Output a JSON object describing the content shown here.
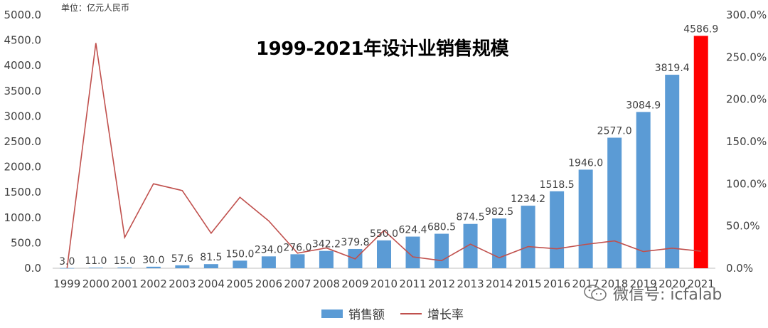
{
  "chart_data": {
    "type": "bar",
    "title": "1999-2021年设计业销售规模",
    "unit_label": "单位：亿元人民币",
    "categories": [
      "1999",
      "2000",
      "2001",
      "2002",
      "2003",
      "2004",
      "2005",
      "2006",
      "2007",
      "2008",
      "2009",
      "2010",
      "2011",
      "2012",
      "2013",
      "2014",
      "2015",
      "2016",
      "2017",
      "2018",
      "2019",
      "2020",
      "2021"
    ],
    "series": [
      {
        "name": "销售额",
        "kind": "bar",
        "axis": "left",
        "color": "#5b9bd5",
        "highlight_color": "#ff0000",
        "highlight_index": 22,
        "values": [
          3.0,
          11.0,
          15.0,
          30.0,
          57.6,
          81.5,
          150.0,
          234.0,
          276.0,
          342.2,
          379.8,
          550.0,
          624.4,
          680.5,
          874.5,
          982.5,
          1234.2,
          1518.5,
          1946.0,
          2577.0,
          3084.9,
          3819.4,
          4586.9
        ],
        "labels": [
          "3.0",
          "11.0",
          "15.0",
          "30.0",
          "57.6",
          "81.5",
          "150.0",
          "234.0",
          "276.0",
          "342.2",
          "379.8",
          "550.0",
          "624.4",
          "680.5",
          "874.5",
          "982.5",
          "1234.2",
          "1518.5",
          "1946.0",
          "2577.0",
          "3084.9",
          "3819.4",
          "4586.9"
        ]
      },
      {
        "name": "增长率",
        "kind": "line",
        "axis": "right",
        "color": "#c0504d",
        "values": [
          0.0,
          266.7,
          36.4,
          100.0,
          92.0,
          41.5,
          84.0,
          56.0,
          17.9,
          24.0,
          11.0,
          44.8,
          13.5,
          9.0,
          28.5,
          12.4,
          25.6,
          23.0,
          28.2,
          32.4,
          19.7,
          23.8,
          20.1
        ]
      }
    ],
    "y_left": {
      "min": 0,
      "max": 5000,
      "ticks": [
        "0.0",
        "500.0",
        "1000.0",
        "1500.0",
        "2000.0",
        "2500.0",
        "3000.0",
        "3500.0",
        "4000.0",
        "4500.0",
        "5000.0"
      ]
    },
    "y_right": {
      "min": 0,
      "max": 300,
      "ticks": [
        "0.0%",
        "50.0%",
        "100.0%",
        "150.0%",
        "200.0%",
        "250.0%",
        "300.0%"
      ]
    },
    "legend": [
      {
        "label": "销售额",
        "kind": "bar"
      },
      {
        "label": "增长率",
        "kind": "line"
      }
    ],
    "legend_position": "bottom"
  },
  "watermark": {
    "text": "微信号: icfalab"
  }
}
